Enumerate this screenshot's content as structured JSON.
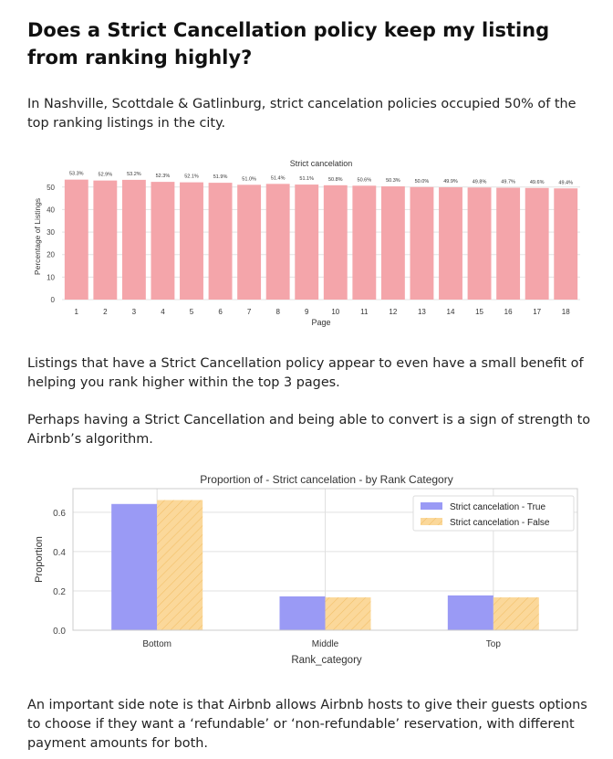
{
  "article": {
    "heading": "Does a Strict Cancellation policy keep my listing from ranking highly?",
    "intro": "In Nashville, Scottdale & Gatlinburg, strict cancelation policies occupied 50% of the top ranking listings in the city.",
    "para_benefit": "Listings that have a Strict Cancellation policy appear to even have a small benefit of helping you rank higher within the top 3 pages.",
    "para_strength": "Perhaps having a Strict Cancellation and being able to convert is a sign of strength to Airbnb’s algorithm.",
    "para_side_note": "An important side note is that Airbnb allows Airbnb hosts to give their guests options to choose if they want a ‘refundable’ or ‘non-refundable’ reservation, with different payment amounts for both."
  },
  "chart_data": [
    {
      "type": "bar",
      "title": "Strict cancelation",
      "xlabel": "Page",
      "ylabel": "Percentage of Listings",
      "categories": [
        "1",
        "2",
        "3",
        "4",
        "5",
        "6",
        "7",
        "8",
        "9",
        "10",
        "11",
        "12",
        "13",
        "14",
        "15",
        "16",
        "17",
        "18"
      ],
      "values": [
        53.3,
        52.9,
        53.2,
        52.3,
        52.1,
        51.9,
        51.0,
        51.4,
        51.1,
        50.8,
        50.6,
        50.3,
        50.0,
        49.9,
        49.8,
        49.7,
        49.6,
        49.4
      ],
      "data_labels": [
        "53.3%",
        "52.9%",
        "53.2%",
        "52.3%",
        "52.1%",
        "51.9%",
        "51.0%",
        "51.4%",
        "51.1%",
        "50.8%",
        "50.6%",
        "50.3%",
        "50.0%",
        "49.9%",
        "49.8%",
        "49.7%",
        "49.6%",
        "49.4%"
      ],
      "ylim": [
        0,
        56
      ],
      "yticks": [
        0,
        10,
        20,
        30,
        40,
        50
      ],
      "grid": true,
      "colors": {
        "bar": "#f4a5aa",
        "grid": "#e3e3e3"
      }
    },
    {
      "type": "bar",
      "title": "Proportion of - Strict cancelation - by Rank Category",
      "xlabel": "Rank_category",
      "ylabel": "Proportion",
      "categories": [
        "Bottom",
        "Middle",
        "Top"
      ],
      "series": [
        {
          "name": "Strict cancelation - True",
          "values": [
            0.642,
            0.172,
            0.177
          ]
        },
        {
          "name": "Strict cancelation - False",
          "values": [
            0.662,
            0.167,
            0.167
          ]
        }
      ],
      "ylim": [
        0,
        0.72
      ],
      "yticks": [
        "0.0",
        "0.2",
        "0.4",
        "0.6"
      ],
      "grid": true,
      "legend": "top-right",
      "colors": {
        "true": "#9a9af5",
        "false": "#fbd89a",
        "hatch": "#f2c06a",
        "frame": "#cccccc",
        "grid": "#e0e0e0"
      }
    }
  ]
}
